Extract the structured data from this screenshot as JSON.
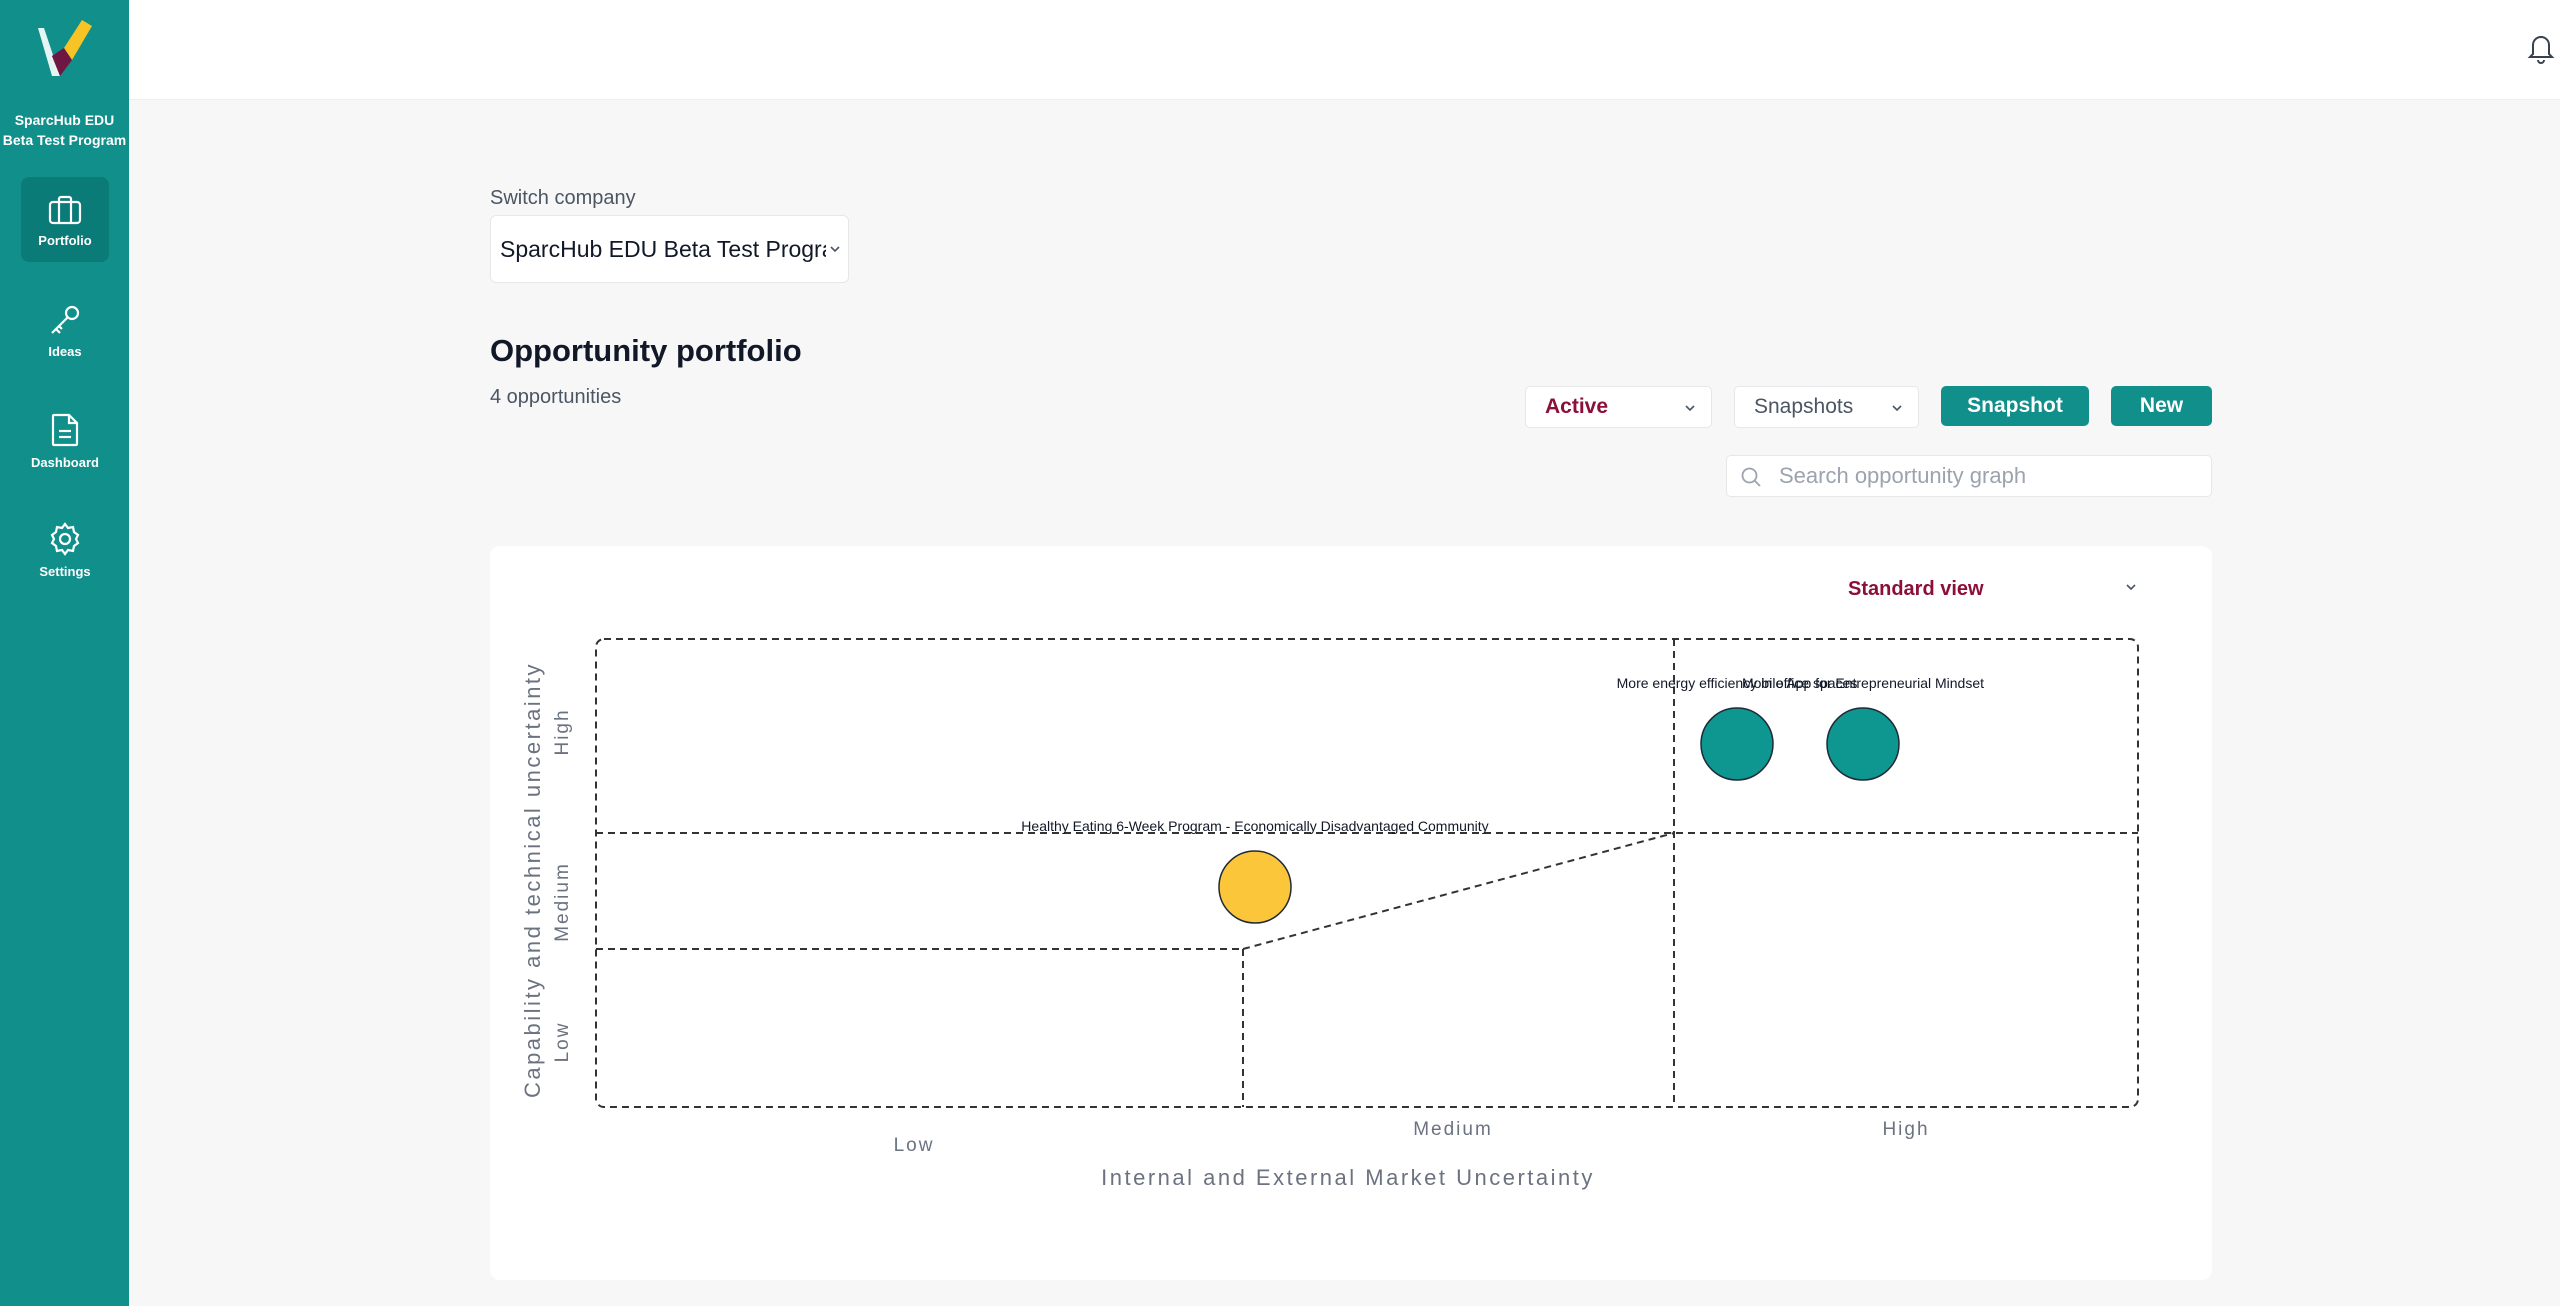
{
  "sidebar": {
    "org_name": "SparcHub EDU Beta Test Program",
    "items": [
      {
        "label": "Portfolio",
        "icon": "portfolio-icon",
        "active": true
      },
      {
        "label": "Ideas",
        "icon": "key-icon",
        "active": false
      },
      {
        "label": "Dashboard",
        "icon": "document-icon",
        "active": false
      },
      {
        "label": "Settings",
        "icon": "gear-icon",
        "active": false
      }
    ]
  },
  "switch_company": {
    "label": "Switch company",
    "value": "SparcHub EDU Beta Test Program"
  },
  "header": {
    "title": "Opportunity portfolio",
    "count": "4 opportunities"
  },
  "controls": {
    "status_value": "Active",
    "snapshots_value": "Snapshots",
    "snapshot_button": "Snapshot",
    "new_button": "New",
    "search_placeholder": "Search opportunity graph"
  },
  "graph": {
    "view_value": "Standard view"
  },
  "colors": {
    "brand": "#118f8b",
    "accent": "#8b0f3a",
    "bubble_teal": "#0e9690",
    "bubble_yellow": "#fcc63b"
  },
  "chart_data": {
    "type": "scatter",
    "xlabel": "Internal and External Market Uncertainty",
    "ylabel": "Capability and technical uncertainty",
    "x_categories": [
      "Low",
      "Medium",
      "High"
    ],
    "y_categories": [
      "Low",
      "Medium",
      "High"
    ],
    "points": [
      {
        "label": "Healthy Eating 6-Week Program - Economically Disadvantaged Community",
        "x": "Medium",
        "y": "Medium",
        "color": "#fcc63b"
      },
      {
        "label": "More energy efficiency in office spaces",
        "x": "High",
        "y": "High",
        "color": "#0e9690"
      },
      {
        "label": "Mobile App for Entrepreneurial Mindset",
        "x": "High",
        "y": "High",
        "color": "#0e9690"
      }
    ]
  }
}
